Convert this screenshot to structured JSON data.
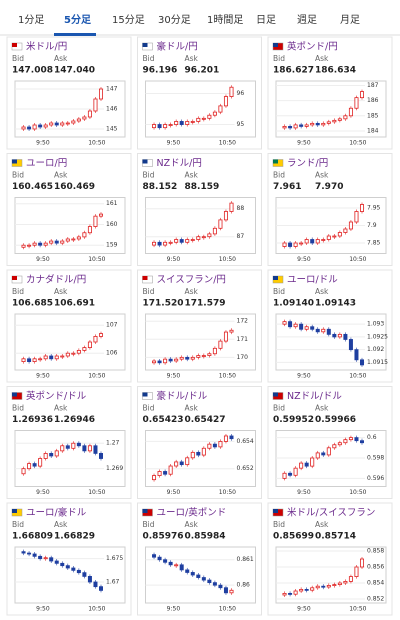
{
  "tabs": {
    "items": [
      "1分足",
      "5分足",
      "15分足",
      "30分足",
      "1時間足",
      "日足",
      "週足",
      "月足"
    ],
    "active": 1
  },
  "labels": {
    "bid": "Bid",
    "ask": "Ask"
  },
  "cards": [
    {
      "pair": "米ドル/円",
      "bid": "147.008",
      "ask": "147.040",
      "ylim": [
        144.6,
        147.4
      ],
      "yticks": [
        147,
        146,
        145
      ],
      "times": [
        "9:50",
        "10:50"
      ],
      "closes": [
        145.0,
        145.1,
        145.0,
        145.2,
        145.1,
        145.2,
        145.3,
        145.2,
        145.3,
        145.3,
        145.4,
        145.5,
        145.6,
        145.9,
        146.5,
        147.0
      ]
    },
    {
      "pair": "豪ドル/円",
      "bid": "96.196",
      "ask": "96.201",
      "ylim": [
        94.6,
        96.4
      ],
      "yticks": [
        96,
        95
      ],
      "times": [
        "9:50",
        "10:50"
      ],
      "closes": [
        94.9,
        95.0,
        94.9,
        95.0,
        95.0,
        95.1,
        95.0,
        95.1,
        95.1,
        95.2,
        95.2,
        95.3,
        95.4,
        95.6,
        95.9,
        96.2
      ]
    },
    {
      "pair": "英ポンド/円",
      "bid": "186.627",
      "ask": "186.634",
      "ylim": [
        183.6,
        187.3
      ],
      "yticks": [
        187,
        186,
        185,
        184
      ],
      "times": [
        "9:50",
        "10:50"
      ],
      "closes": [
        184.2,
        184.3,
        184.2,
        184.4,
        184.3,
        184.4,
        184.5,
        184.4,
        184.5,
        184.6,
        184.7,
        184.8,
        185.0,
        185.5,
        186.2,
        186.6
      ]
    },
    {
      "pair": "ユーロ/円",
      "bid": "160.465",
      "ask": "160.469",
      "ylim": [
        158.6,
        161.3
      ],
      "yticks": [
        161,
        160,
        159
      ],
      "times": [
        "9:50",
        "10:50"
      ],
      "closes": [
        158.9,
        159.0,
        159.0,
        159.1,
        159.0,
        159.1,
        159.2,
        159.1,
        159.2,
        159.3,
        159.3,
        159.4,
        159.6,
        159.9,
        160.4,
        160.5
      ]
    },
    {
      "pair": "NZドル/円",
      "bid": "88.152",
      "ask": "88.159",
      "ylim": [
        86.4,
        88.4
      ],
      "yticks": [
        88,
        87
      ],
      "times": [
        "9:50",
        "10:50"
      ],
      "closes": [
        86.7,
        86.8,
        86.7,
        86.8,
        86.8,
        86.9,
        86.8,
        86.9,
        86.9,
        87.0,
        87.0,
        87.1,
        87.3,
        87.6,
        87.9,
        88.2
      ]
    },
    {
      "pair": "ランド/円",
      "bid": "7.961",
      "ask": "7.970",
      "ylim": [
        7.82,
        7.98
      ],
      "yticks": [
        7.95,
        7.9,
        7.85
      ],
      "times": [
        "9:50",
        "10:50"
      ],
      "closes": [
        7.84,
        7.85,
        7.84,
        7.85,
        7.85,
        7.86,
        7.85,
        7.86,
        7.86,
        7.87,
        7.87,
        7.88,
        7.89,
        7.91,
        7.94,
        7.96
      ]
    },
    {
      "pair": "カナダドル/円",
      "bid": "106.685",
      "ask": "106.691",
      "ylim": [
        105.4,
        107.4
      ],
      "yticks": [
        107,
        106
      ],
      "times": [
        "9:50",
        "10:50"
      ],
      "closes": [
        105.7,
        105.8,
        105.7,
        105.8,
        105.8,
        105.9,
        105.8,
        105.9,
        105.9,
        106.0,
        106.0,
        106.1,
        106.2,
        106.4,
        106.6,
        106.7
      ]
    },
    {
      "pair": "スイスフラン/円",
      "bid": "171.520",
      "ask": "171.579",
      "ylim": [
        169.3,
        172.4
      ],
      "yticks": [
        172,
        171,
        170
      ],
      "times": [
        "9:50",
        "10:50"
      ],
      "closes": [
        169.7,
        169.8,
        169.7,
        169.9,
        169.8,
        169.9,
        170.0,
        169.9,
        170.0,
        170.1,
        170.1,
        170.2,
        170.5,
        170.9,
        171.4,
        171.5
      ]
    },
    {
      "pair": "ユーロ/ドル",
      "bid": "1.09140",
      "ask": "1.09143",
      "ylim": [
        1.0912,
        1.0934
      ],
      "yticks": [
        1.093,
        1.0925,
        1.092,
        1.0915
      ],
      "times": [
        "9:50",
        "10:50"
      ],
      "closes": [
        1.093,
        1.0931,
        1.0929,
        1.093,
        1.0928,
        1.0929,
        1.0928,
        1.0927,
        1.0928,
        1.0926,
        1.0925,
        1.0926,
        1.0924,
        1.092,
        1.0916,
        1.0914
      ]
    },
    {
      "pair": "英ポンド/ドル",
      "bid": "1.26936",
      "ask": "1.26946",
      "ylim": [
        1.2683,
        1.2705
      ],
      "yticks": [
        1.27,
        1.269
      ],
      "times": [
        "9:50",
        "10:50"
      ],
      "closes": [
        1.2688,
        1.269,
        1.2692,
        1.2691,
        1.2694,
        1.2696,
        1.2695,
        1.2697,
        1.2699,
        1.2698,
        1.27,
        1.2699,
        1.2697,
        1.2699,
        1.2696,
        1.2694
      ]
    },
    {
      "pair": "豪ドル/ドル",
      "bid": "0.65423",
      "ask": "0.65427",
      "ylim": [
        0.6507,
        0.6548
      ],
      "yticks": [
        0.654,
        0.652
      ],
      "times": [
        "9:50",
        "10:50"
      ],
      "closes": [
        0.6512,
        0.6515,
        0.6518,
        0.6516,
        0.6522,
        0.6525,
        0.6523,
        0.6528,
        0.6532,
        0.653,
        0.6535,
        0.6538,
        0.6536,
        0.654,
        0.6544,
        0.6542
      ]
    },
    {
      "pair": "NZドル/ドル",
      "bid": "0.59952",
      "ask": "0.59966",
      "ylim": [
        0.5952,
        0.6007
      ],
      "yticks": [
        0.6,
        0.598,
        0.596
      ],
      "times": [
        "9:50",
        "10:50"
      ],
      "closes": [
        0.596,
        0.5965,
        0.5963,
        0.597,
        0.5975,
        0.5972,
        0.598,
        0.5985,
        0.5983,
        0.599,
        0.5993,
        0.5995,
        0.5998,
        0.6,
        0.5997,
        0.5995
      ]
    },
    {
      "pair": "ユーロ/豪ドル",
      "bid": "1.66809",
      "ask": "1.66829",
      "ylim": [
        1.6655,
        1.6775
      ],
      "yticks": [
        1.675,
        1.67
      ],
      "times": [
        "9:50",
        "10:50"
      ],
      "closes": [
        1.6765,
        1.6762,
        1.676,
        1.6755,
        1.675,
        1.6752,
        1.6745,
        1.674,
        1.6735,
        1.673,
        1.6725,
        1.672,
        1.6712,
        1.67,
        1.669,
        1.6682
      ]
    },
    {
      "pair": "ユーロ/英ポンド",
      "bid": "0.85976",
      "ask": "0.85984",
      "ylim": [
        0.8593,
        0.8615
      ],
      "yticks": [
        0.861,
        0.86
      ],
      "times": [
        "9:50",
        "10:50"
      ],
      "closes": [
        0.8612,
        0.8611,
        0.861,
        0.8609,
        0.8608,
        0.8608,
        0.8606,
        0.8605,
        0.8604,
        0.8603,
        0.8602,
        0.8601,
        0.86,
        0.8599,
        0.8597,
        0.8598
      ]
    },
    {
      "pair": "米ドル/スイスフラン",
      "bid": "0.85699",
      "ask": "0.85714",
      "ylim": [
        0.8515,
        0.8585
      ],
      "yticks": [
        0.858,
        0.856,
        0.854,
        0.852
      ],
      "times": [
        "9:50",
        "10:50"
      ],
      "closes": [
        0.8525,
        0.8527,
        0.8526,
        0.853,
        0.8532,
        0.8531,
        0.8534,
        0.8536,
        0.8535,
        0.8537,
        0.8538,
        0.854,
        0.8542,
        0.8548,
        0.856,
        0.857
      ]
    }
  ]
}
